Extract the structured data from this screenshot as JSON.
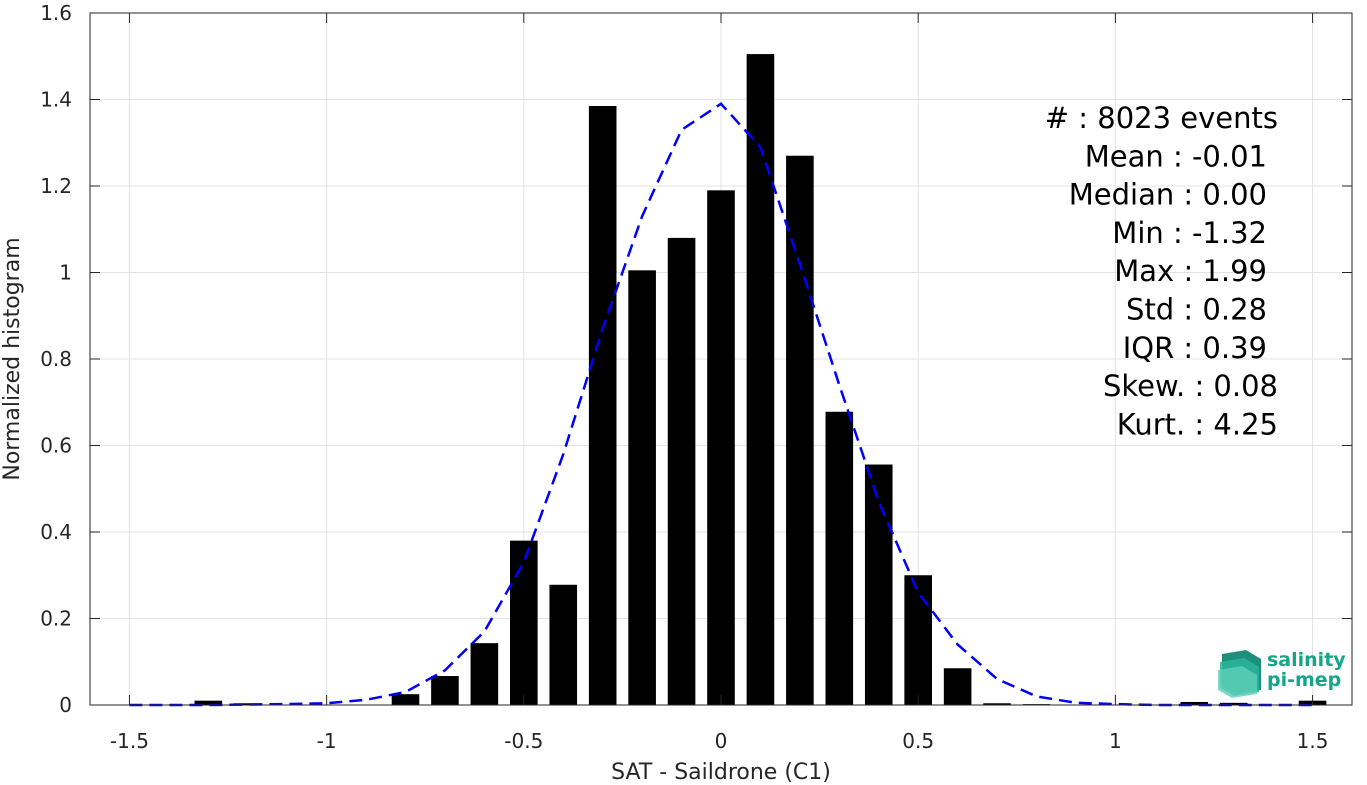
{
  "chart_data": {
    "type": "bar",
    "xlabel": "SAT - Saildrone (C1)",
    "ylabel": "Normalized histogram",
    "xlim": [
      -1.6,
      1.6
    ],
    "ylim": [
      0,
      1.6
    ],
    "x_ticks": [
      -1.5,
      -1,
      -0.5,
      0,
      0.5,
      1,
      1.5
    ],
    "x_tick_labels": [
      "-1.5",
      "-1",
      "-0.5",
      "0",
      "0.5",
      "1",
      "1.5"
    ],
    "y_ticks": [
      0,
      0.2,
      0.4,
      0.6,
      0.8,
      1,
      1.2,
      1.4,
      1.6
    ],
    "y_tick_labels": [
      "0",
      "0.2",
      "0.4",
      "0.6",
      "0.8",
      "1",
      "1.2",
      "1.4",
      "1.6"
    ],
    "grid": true,
    "bar_color": "#000000",
    "bar_width": 0.07,
    "bins": [
      {
        "x": -1.3,
        "y": 0.01
      },
      {
        "x": -1.2,
        "y": 0.004
      },
      {
        "x": -0.8,
        "y": 0.025
      },
      {
        "x": -0.7,
        "y": 0.067
      },
      {
        "x": -0.6,
        "y": 0.143
      },
      {
        "x": -0.5,
        "y": 0.38
      },
      {
        "x": -0.4,
        "y": 0.278
      },
      {
        "x": -0.3,
        "y": 1.385
      },
      {
        "x": -0.2,
        "y": 1.005
      },
      {
        "x": -0.1,
        "y": 1.08
      },
      {
        "x": 0.0,
        "y": 1.19
      },
      {
        "x": 0.1,
        "y": 1.505
      },
      {
        "x": 0.2,
        "y": 1.27
      },
      {
        "x": 0.3,
        "y": 0.678
      },
      {
        "x": 0.4,
        "y": 0.556
      },
      {
        "x": 0.5,
        "y": 0.3
      },
      {
        "x": 0.6,
        "y": 0.085
      },
      {
        "x": 0.7,
        "y": 0.004
      },
      {
        "x": 0.8,
        "y": 0.002
      },
      {
        "x": 1.2,
        "y": 0.007
      },
      {
        "x": 1.3,
        "y": 0.005
      },
      {
        "x": 1.5,
        "y": 0.01
      }
    ],
    "series": [
      {
        "style": "dashed",
        "color": "#0000ff",
        "x": [
          -1.5,
          -1.3,
          -1.1,
          -1.0,
          -0.9,
          -0.8,
          -0.7,
          -0.6,
          -0.5,
          -0.4,
          -0.3,
          -0.25,
          -0.2,
          -0.1,
          0.0,
          0.1,
          0.2,
          0.3,
          0.4,
          0.5,
          0.6,
          0.7,
          0.8,
          0.9,
          1.0,
          1.1,
          1.3,
          1.5
        ],
        "y": [
          0.0,
          0.0,
          0.002,
          0.004,
          0.012,
          0.03,
          0.08,
          0.17,
          0.33,
          0.58,
          0.87,
          1.0,
          1.13,
          1.33,
          1.39,
          1.29,
          1.02,
          0.74,
          0.47,
          0.26,
          0.14,
          0.06,
          0.02,
          0.005,
          0.002,
          0.0,
          0.0,
          0.0
        ]
      }
    ],
    "annotations": [
      "#  : 8023 events",
      "Mean : -0.01",
      "Median : 0.00",
      "Min : -1.32",
      "Max : 1.99",
      "Std : 0.28",
      "IQR : 0.39",
      "Skew. : 0.08",
      "Kurt. : 4.25"
    ]
  },
  "logo": {
    "line1": "salinity",
    "line2": "pi-mep",
    "color": "#17a589"
  }
}
